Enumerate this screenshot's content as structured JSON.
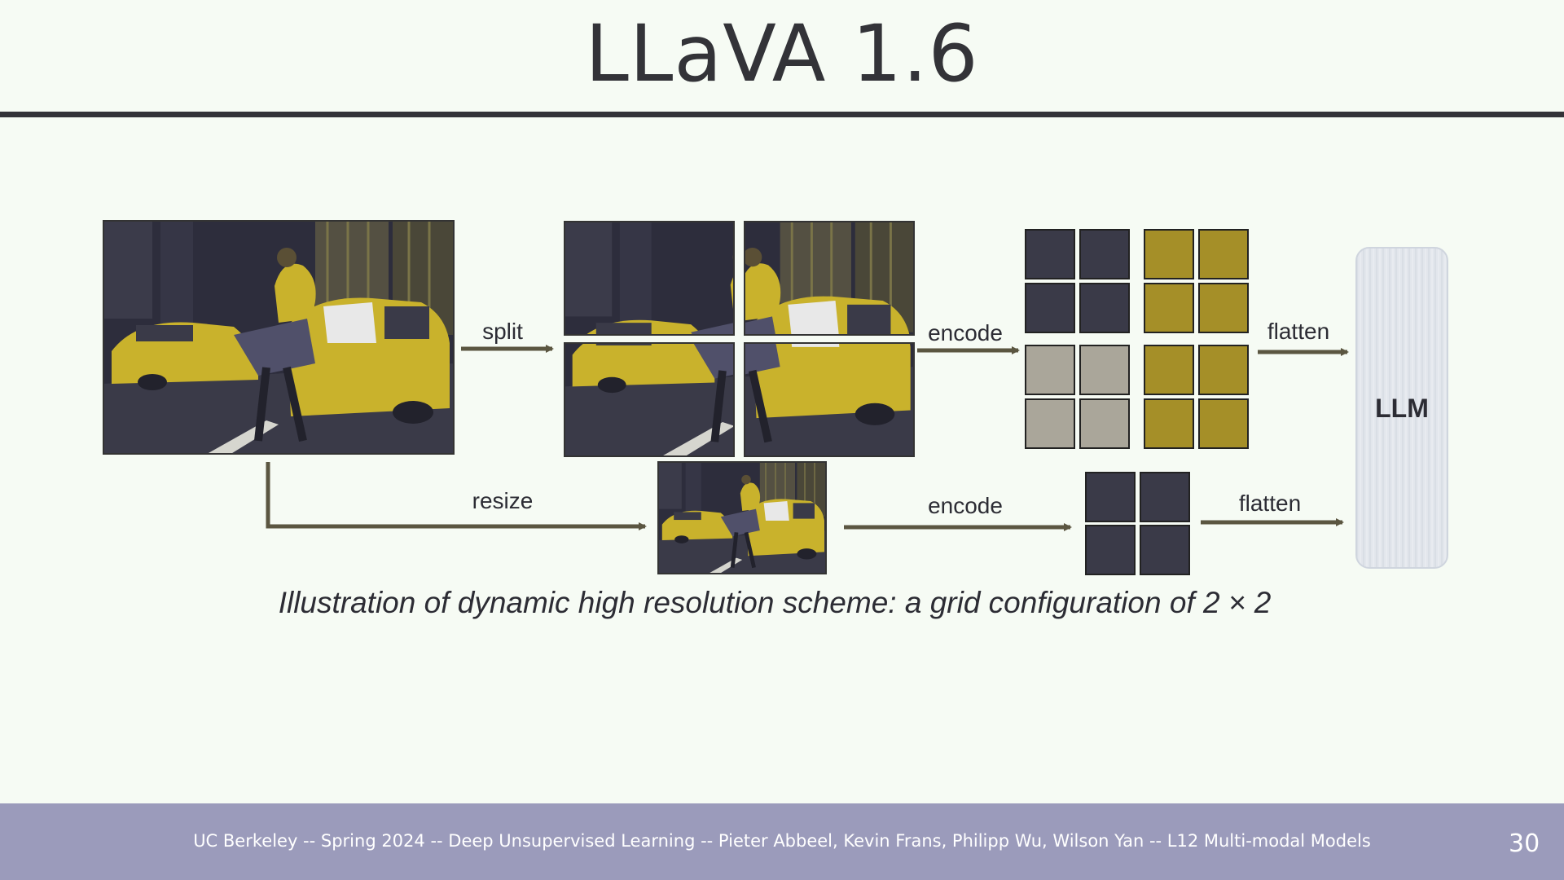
{
  "slide": {
    "title": "LLaVA 1.6",
    "footer": "UC Berkeley -- Spring 2024 -- Deep Unsupervised Learning -- Pieter Abbeel, Kevin Frans, Philipp Wu, Wilson Yan  -- L12 Multi-modal Models",
    "page_number": "30"
  },
  "diagram": {
    "labels": {
      "split": "split",
      "encode_top": "encode",
      "flatten_top": "flatten",
      "resize": "resize",
      "encode_bottom": "encode",
      "flatten_bottom": "flatten",
      "llm": "LLM"
    },
    "caption": "Illustration of dynamic high resolution scheme: a grid configuration of 2 × 2"
  },
  "colors": {
    "dark_tile": "#3a3a48",
    "gold_tile": "#a58f28",
    "grey_tile": "#aaa69a",
    "arrow": "#5b5641",
    "photo_dark": "#2d2d3c",
    "photo_gold": "#c9b22c"
  }
}
